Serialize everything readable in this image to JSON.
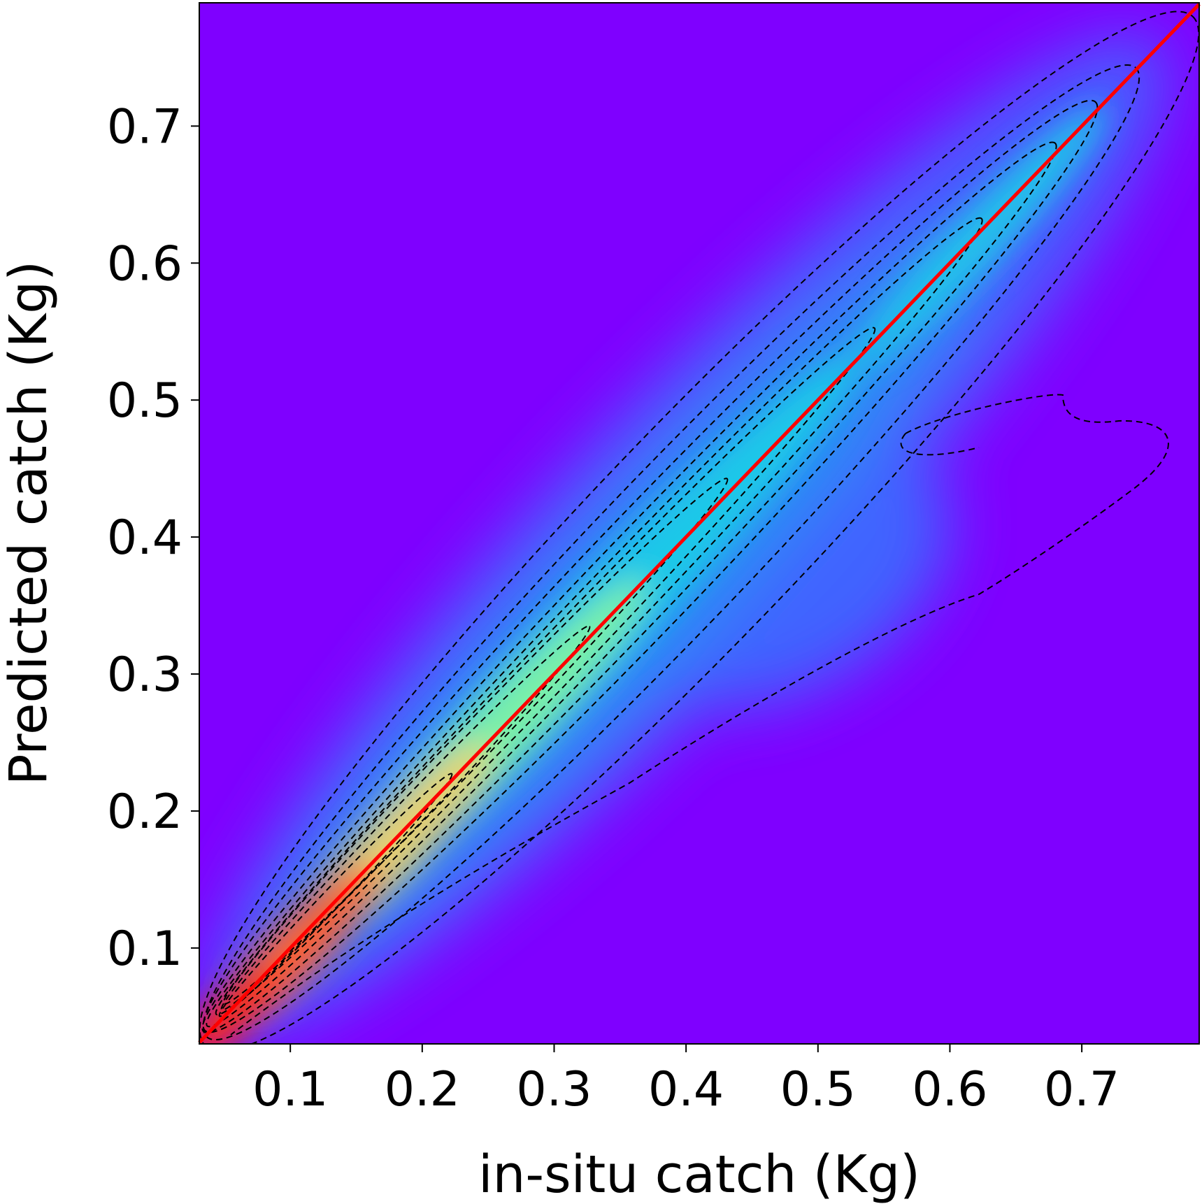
{
  "chart_data": {
    "type": "density",
    "x_label": "in-situ catch (Kg)",
    "y_label": "Predicted catch (Kg)",
    "xlim": [
      0.031,
      0.789
    ],
    "ylim": [
      0.03,
      0.79
    ],
    "xticks": [
      0.1,
      0.2,
      0.3,
      0.4,
      0.5,
      0.6,
      0.7
    ],
    "yticks": [
      0.1,
      0.2,
      0.3,
      0.4,
      0.5,
      0.6,
      0.7
    ],
    "background_color": "#7f00ff",
    "line": {
      "x": [
        0.031,
        0.789
      ],
      "values": [
        0.031,
        0.789
      ],
      "color": "#ff0000"
    },
    "grid": false
  }
}
